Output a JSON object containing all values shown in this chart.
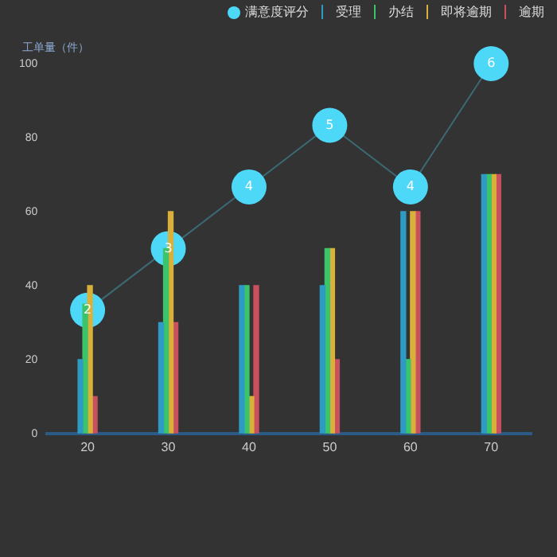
{
  "chart_data": {
    "type": "bar",
    "ylabel": "工单量（件）",
    "categories": [
      "20",
      "30",
      "40",
      "50",
      "60",
      "70"
    ],
    "ylim": [
      0,
      100
    ],
    "yticks": [
      0,
      20,
      40,
      60,
      80,
      100
    ],
    "grid": false,
    "legend": "top right",
    "series": [
      {
        "name": "满意度评分",
        "type": "line",
        "axis": "y2",
        "color": "#4dd8f7",
        "marker": "circle",
        "data_labels": true,
        "values": [
          2,
          3,
          4,
          5,
          4,
          6
        ]
      },
      {
        "name": "受理",
        "color": "#2e9bc4",
        "values": [
          20,
          30,
          40,
          40,
          60,
          70
        ]
      },
      {
        "name": "办结",
        "color": "#3cc46a",
        "values": [
          35,
          50,
          40,
          50,
          20,
          70
        ]
      },
      {
        "name": "即将逾期",
        "color": "#d9b13a",
        "values": [
          40,
          60,
          10,
          50,
          60,
          70
        ]
      },
      {
        "name": "逾期",
        "color": "#c9505e",
        "values": [
          10,
          30,
          40,
          20,
          60,
          70
        ]
      }
    ]
  }
}
